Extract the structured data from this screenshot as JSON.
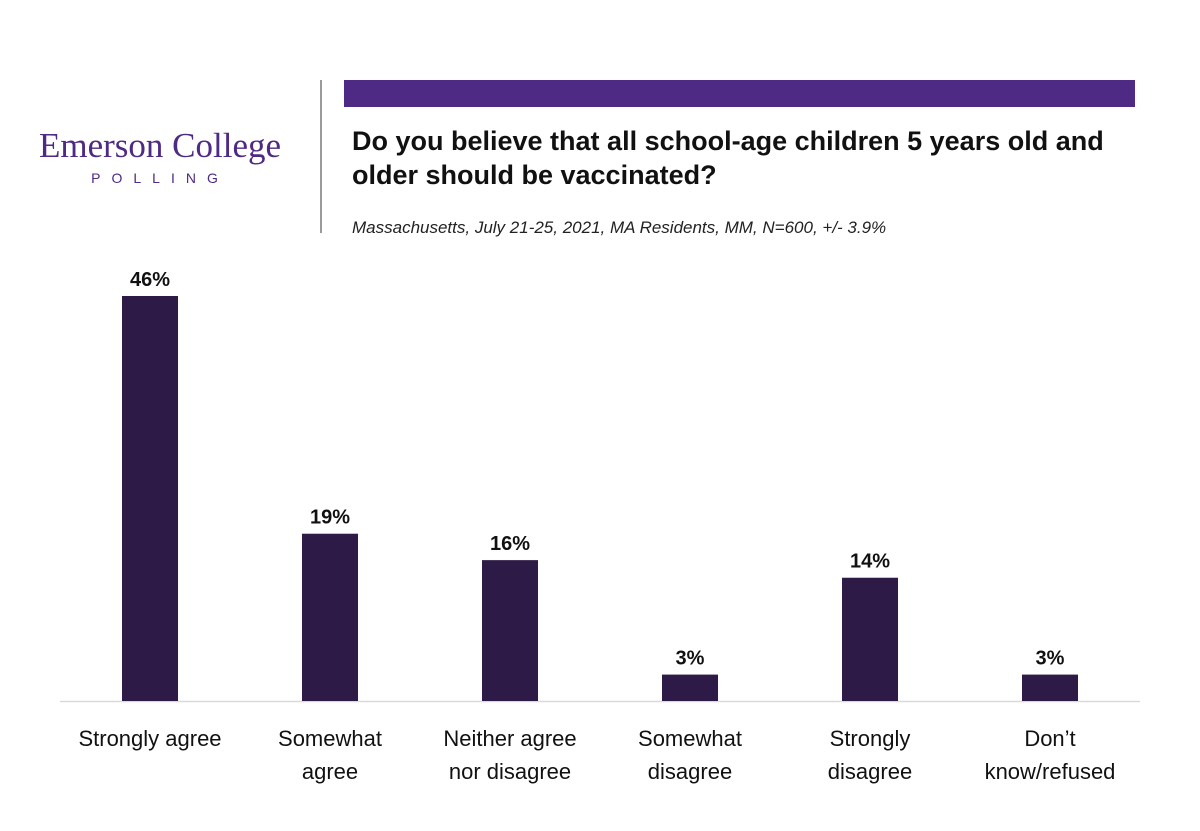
{
  "logo": {
    "name": "Emerson College",
    "sub": "POLLING"
  },
  "colors": {
    "accent": "#4e2a84",
    "bar": "#2d1a47",
    "axis": "#d9d9d9"
  },
  "chart_data": {
    "type": "bar",
    "title": "Do you believe that all school-age children 5 years old and older should be vaccinated?",
    "subtitle": "Massachusetts, July 21-25, 2021, MA Residents, MM, N=600, +/- 3.9%",
    "categories": [
      [
        "Strongly agree"
      ],
      [
        "Somewhat",
        "agree"
      ],
      [
        "Neither agree",
        "nor disagree"
      ],
      [
        "Somewhat",
        "disagree"
      ],
      [
        "Strongly",
        "disagree"
      ],
      [
        "Don’t",
        "know/refused"
      ]
    ],
    "values": [
      46,
      19,
      16,
      3,
      14,
      3
    ],
    "value_labels": [
      "46%",
      "19%",
      "16%",
      "3%",
      "14%",
      "3%"
    ],
    "ylim": [
      0,
      46
    ],
    "grid": false,
    "legend": "none"
  }
}
